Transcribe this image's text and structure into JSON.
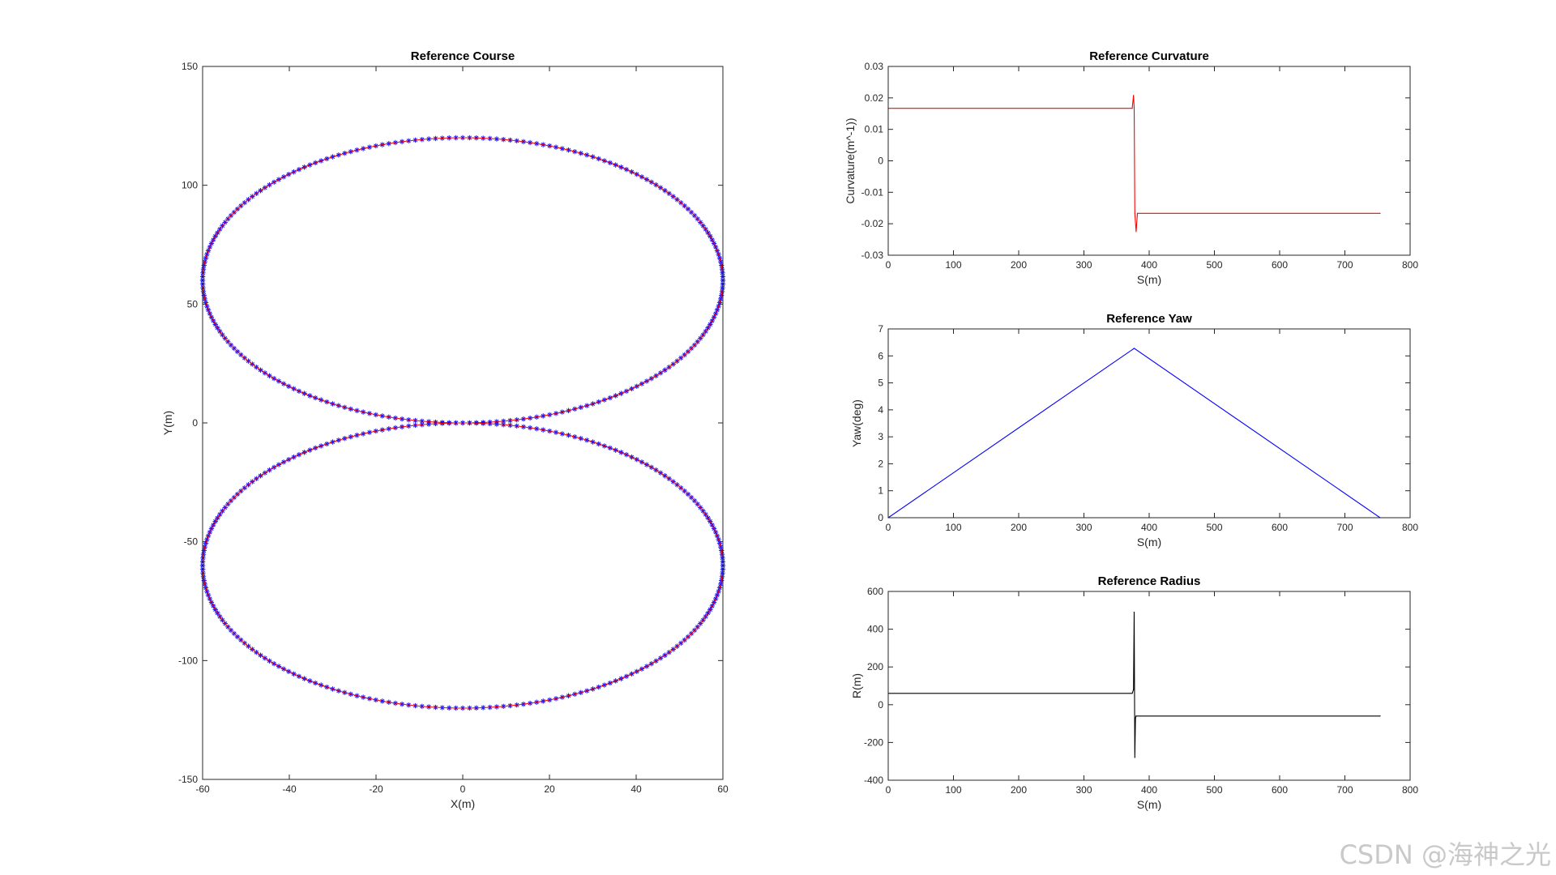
{
  "watermark": "CSDN @海神之光",
  "chart_data": [
    {
      "type": "scatter",
      "title": "Reference Course",
      "xlabel": "X(m)",
      "ylabel": "Y(m)",
      "xlim": [
        -60,
        60
      ],
      "ylim": [
        -150,
        150
      ],
      "xticks": [
        "-60",
        "-40",
        "-20",
        "0",
        "20",
        "40",
        "60"
      ],
      "yticks": [
        "-150",
        "-100",
        "-50",
        "0",
        "50",
        "100",
        "150"
      ],
      "grid": false,
      "series": [
        {
          "shape": "figure-eight of two ellipses",
          "center_x": 0,
          "upper_center_y": 60,
          "lower_center_y": -60,
          "radius_x": 60,
          "radius_y": 60,
          "line_color": "#ff0000",
          "marker": "*",
          "marker_color": "#0000ff",
          "points_per_loop": 240
        }
      ]
    },
    {
      "type": "line",
      "title": "Reference Curvature",
      "xlabel": "S(m)",
      "ylabel": "Curvature(m^-1))",
      "xlim": [
        0,
        800
      ],
      "ylim": [
        -0.03,
        0.03
      ],
      "xticks": [
        "0",
        "100",
        "200",
        "300",
        "400",
        "500",
        "600",
        "700",
        "800"
      ],
      "yticks": [
        "-0.03",
        "-0.02",
        "-0.01",
        "0",
        "0.01",
        "0.02",
        "0.03"
      ],
      "color": "#ff0000",
      "x": [
        0,
        374,
        376,
        377,
        378,
        380,
        382,
        754
      ],
      "y": [
        0.0167,
        0.0167,
        0.0208,
        0.0167,
        -0.0167,
        -0.0225,
        -0.0167,
        -0.0167
      ]
    },
    {
      "type": "line",
      "title": "Reference Yaw",
      "xlabel": "S(m)",
      "ylabel": "Yaw(deg)",
      "xlim": [
        0,
        800
      ],
      "ylim": [
        0,
        7
      ],
      "xticks": [
        "0",
        "100",
        "200",
        "300",
        "400",
        "500",
        "600",
        "700",
        "800"
      ],
      "yticks": [
        "0",
        "1",
        "2",
        "3",
        "4",
        "5",
        "6",
        "7"
      ],
      "color": "#0000ff",
      "x": [
        0,
        377,
        754
      ],
      "y": [
        0,
        6.28,
        0
      ]
    },
    {
      "type": "line",
      "title": "Reference Radius",
      "xlabel": "S(m)",
      "ylabel": "R(m)",
      "xlim": [
        0,
        800
      ],
      "ylim": [
        -400,
        600
      ],
      "xticks": [
        "0",
        "100",
        "200",
        "300",
        "400",
        "500",
        "600",
        "700",
        "800"
      ],
      "yticks": [
        "-400",
        "-200",
        "0",
        "200",
        "400",
        "600"
      ],
      "color": "#000000",
      "x": [
        0,
        374,
        376,
        377,
        378,
        379,
        380,
        754
      ],
      "y": [
        60,
        60,
        80,
        490,
        -280,
        -70,
        -60,
        -60
      ]
    }
  ]
}
